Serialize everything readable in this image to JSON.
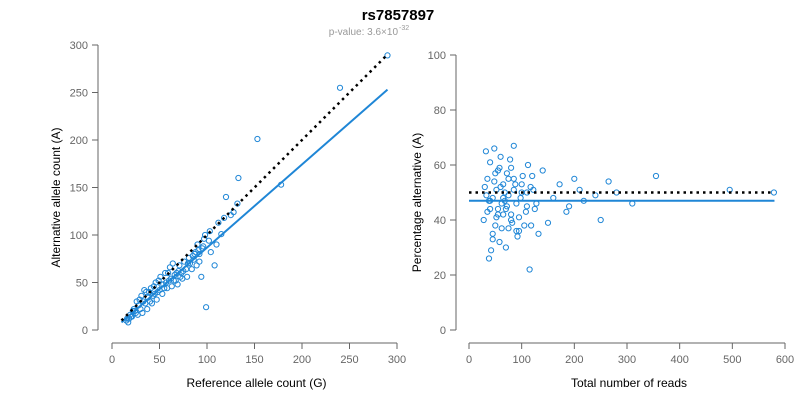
{
  "header": {
    "title": "rs7857897",
    "pvalue_prefix": "p-value: 3.6×10",
    "pvalue_exponent": "-32"
  },
  "colors": {
    "points": "#1f86d6",
    "fit_line": "#1f86d6",
    "reference_line": "#000000",
    "axis": "#666666"
  },
  "chart_data": [
    {
      "type": "scatter",
      "xlabel": "Reference allele count (G)",
      "ylabel": "Alternative allele count (A)",
      "xlim": [
        0,
        300
      ],
      "ylim": [
        0,
        300
      ],
      "xticks": [
        0,
        50,
        100,
        150,
        200,
        250,
        300
      ],
      "yticks": [
        0,
        50,
        100,
        150,
        200,
        250,
        300
      ],
      "grid": false,
      "reference_line": {
        "style": "dotted",
        "x": [
          10,
          290
        ],
        "y": [
          10,
          290
        ]
      },
      "fit_line": {
        "style": "solid",
        "x": [
          10,
          290
        ],
        "y": [
          8,
          253
        ]
      },
      "points": {
        "x": [
          290,
          240,
          153,
          133,
          132,
          112,
          120,
          103,
          97,
          88,
          99,
          108,
          94,
          92,
          178,
          125,
          115,
          90,
          102,
          85,
          80,
          75,
          68,
          60,
          55,
          50,
          45,
          40,
          35,
          30,
          25,
          20,
          18,
          15,
          22,
          28,
          33,
          38,
          43,
          48,
          52,
          57,
          62,
          66,
          70,
          73,
          78,
          82,
          86,
          32,
          37,
          42,
          47,
          53,
          58,
          63,
          67,
          72,
          27,
          24,
          21,
          19,
          17,
          26,
          31,
          36,
          41,
          46,
          51,
          56,
          61,
          65,
          69,
          74,
          79,
          84,
          89,
          92,
          95,
          98,
          104,
          110,
          118,
          128,
          96,
          76,
          64,
          54,
          44,
          34,
          29,
          39,
          49,
          59,
          71,
          81,
          87,
          91,
          23,
          16
        ],
        "y": [
          289,
          255,
          201,
          160,
          133,
          113,
          140,
          104,
          96,
          82,
          24,
          68,
          56,
          72,
          153,
          121,
          101,
          90,
          94,
          78,
          70,
          62,
          60,
          52,
          44,
          42,
          38,
          30,
          28,
          22,
          18,
          14,
          12,
          10,
          20,
          26,
          30,
          34,
          36,
          40,
          48,
          50,
          54,
          58,
          62,
          60,
          64,
          70,
          74,
          18,
          22,
          28,
          32,
          38,
          44,
          46,
          52,
          56,
          16,
          20,
          14,
          16,
          8,
          30,
          36,
          40,
          44,
          50,
          56,
          60,
          66,
          52,
          48,
          54,
          56,
          64,
          68,
          80,
          86,
          100,
          82,
          90,
          118,
          124,
          88,
          72,
          70,
          48,
          46,
          42,
          32,
          40,
          52,
          60,
          68,
          76,
          80,
          84,
          22,
          12
        ]
      }
    },
    {
      "type": "scatter",
      "xlabel": "Total number of reads",
      "ylabel": "Percentage alternative (A)",
      "xlim": [
        0,
        600
      ],
      "ylim": [
        0,
        100
      ],
      "xticks": [
        0,
        100,
        200,
        300,
        400,
        500,
        600
      ],
      "yticks": [
        0,
        20,
        40,
        60,
        80,
        100
      ],
      "grid": false,
      "reference_line": {
        "style": "dotted",
        "x": [
          0,
          580
        ],
        "y": [
          50,
          50
        ]
      },
      "fit_line": {
        "style": "solid",
        "x": [
          0,
          580
        ],
        "y": [
          47,
          47
        ]
      },
      "points": {
        "x": [
          579,
          495,
          355,
          310,
          280,
          265,
          240,
          250,
          218,
          210,
          200,
          190,
          185,
          172,
          160,
          150,
          140,
          132,
          125,
          120,
          115,
          110,
          105,
          100,
          95,
          90,
          85,
          80,
          75,
          70,
          65,
          60,
          55,
          50,
          45,
          40,
          35,
          30,
          28,
          32,
          38,
          42,
          48,
          52,
          58,
          62,
          68,
          72,
          78,
          82,
          88,
          92,
          98,
          102,
          108,
          112,
          118,
          122,
          128,
          45,
          55,
          65,
          75,
          85,
          95,
          40,
          50,
          60,
          70,
          80,
          90,
          100,
          110,
          35,
          45,
          55,
          65,
          75,
          85,
          62,
          48,
          38,
          72,
          33,
          58,
          40,
          52,
          68,
          117,
          80
        ],
        "y": [
          50,
          51,
          56,
          46,
          50,
          54,
          49,
          40,
          47,
          51,
          55,
          45,
          43,
          53,
          48,
          39,
          58,
          35,
          44,
          56,
          22,
          50,
          38,
          53,
          36,
          46,
          67,
          42,
          55,
          30,
          48,
          63,
          44,
          57,
          35,
          61,
          43,
          52,
          40,
          65,
          47,
          29,
          54,
          41,
          59,
          37,
          50,
          45,
          62,
          39,
          53,
          34,
          48,
          56,
          43,
          60,
          38,
          51,
          46,
          33,
          58,
          42,
          49,
          55,
          41,
          47,
          38,
          52,
          44,
          59,
          36,
          50,
          45,
          55,
          48,
          42,
          53,
          37,
          51,
          46,
          66,
          26,
          57,
          49,
          32,
          44,
          51,
          47,
          52,
          40
        ]
      }
    }
  ]
}
